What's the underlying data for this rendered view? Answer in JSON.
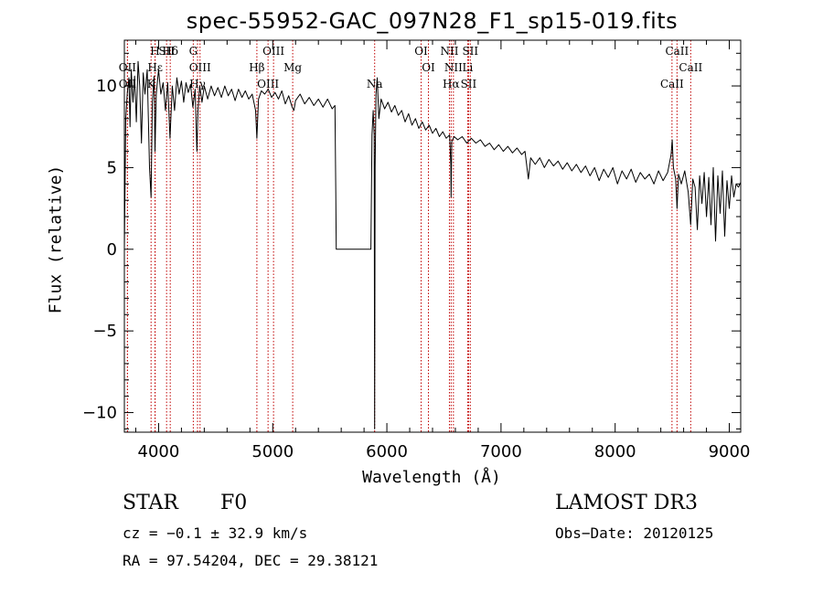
{
  "chart_data": {
    "type": "line",
    "title": "spec-55952-GAC_097N28_F1_sp15-019.fits",
    "xlabel": "Wavelength (Å)",
    "ylabel": "Flux (relative)",
    "xlim": [
      3700,
      9100
    ],
    "ylim": [
      -11.2,
      12.8
    ],
    "xticks": [
      4000,
      5000,
      6000,
      7000,
      8000,
      9000
    ],
    "xtick_labels": [
      "4000",
      "5000",
      "6000",
      "7000",
      "8000",
      "9000"
    ],
    "yticks": [
      -10,
      -5,
      0,
      5,
      10
    ],
    "ytick_labels": [
      "−10",
      "−5",
      "0",
      "5",
      "10"
    ],
    "grid": false,
    "series": [
      {
        "color": "#000000",
        "points": [
          [
            3700,
            0
          ],
          [
            3712,
            8
          ],
          [
            3725,
            9.5
          ],
          [
            3740,
            10.5
          ],
          [
            3750,
            7.5
          ],
          [
            3760,
            11
          ],
          [
            3775,
            9
          ],
          [
            3790,
            10.6
          ],
          [
            3805,
            7.8
          ],
          [
            3820,
            11.5
          ],
          [
            3835,
            10
          ],
          [
            3850,
            6.5
          ],
          [
            3865,
            10.8
          ],
          [
            3880,
            9.5
          ],
          [
            3900,
            11
          ],
          [
            3920,
            5
          ],
          [
            3934,
            3.2
          ],
          [
            3945,
            9
          ],
          [
            3960,
            10.6
          ],
          [
            3968,
            6
          ],
          [
            3980,
            9.5
          ],
          [
            4000,
            11
          ],
          [
            4020,
            9.5
          ],
          [
            4040,
            10.2
          ],
          [
            4060,
            8.5
          ],
          [
            4080,
            10.2
          ],
          [
            4100,
            6.8
          ],
          [
            4120,
            10
          ],
          [
            4140,
            8.5
          ],
          [
            4160,
            10.5
          ],
          [
            4180,
            9.5
          ],
          [
            4200,
            10.3
          ],
          [
            4220,
            9
          ],
          [
            4240,
            10.2
          ],
          [
            4260,
            9.6
          ],
          [
            4280,
            10.1
          ],
          [
            4300,
            8.7
          ],
          [
            4320,
            9.8
          ],
          [
            4335,
            6
          ],
          [
            4345,
            8.5
          ],
          [
            4360,
            10
          ],
          [
            4380,
            9
          ],
          [
            4400,
            10
          ],
          [
            4430,
            9.2
          ],
          [
            4460,
            10
          ],
          [
            4490,
            9.4
          ],
          [
            4520,
            9.9
          ],
          [
            4550,
            9.3
          ],
          [
            4580,
            10
          ],
          [
            4610,
            9.4
          ],
          [
            4640,
            9.8
          ],
          [
            4670,
            9.1
          ],
          [
            4700,
            9.8
          ],
          [
            4730,
            9.3
          ],
          [
            4760,
            9.7
          ],
          [
            4790,
            9.2
          ],
          [
            4820,
            9.5
          ],
          [
            4850,
            8.5
          ],
          [
            4861,
            6.8
          ],
          [
            4875,
            9.2
          ],
          [
            4900,
            9.7
          ],
          [
            4930,
            9.5
          ],
          [
            4960,
            9.8
          ],
          [
            4990,
            9.3
          ],
          [
            5020,
            9.6
          ],
          [
            5050,
            9.2
          ],
          [
            5080,
            9.7
          ],
          [
            5110,
            8.9
          ],
          [
            5140,
            9.4
          ],
          [
            5170,
            8.7
          ],
          [
            5185,
            8.5
          ],
          [
            5200,
            9.1
          ],
          [
            5240,
            9.5
          ],
          [
            5280,
            8.9
          ],
          [
            5320,
            9.3
          ],
          [
            5360,
            8.8
          ],
          [
            5400,
            9.2
          ],
          [
            5440,
            8.7
          ],
          [
            5480,
            9.2
          ],
          [
            5520,
            8.6
          ],
          [
            5545,
            8.8
          ],
          [
            5552,
            3.5
          ],
          [
            5556,
            0
          ],
          [
            5860,
            0
          ],
          [
            5870,
            7
          ],
          [
            5880,
            8.5
          ],
          [
            5889,
            7
          ],
          [
            5893,
            -11
          ],
          [
            5897,
            5
          ],
          [
            5905,
            9.5
          ],
          [
            5915,
            10.5
          ],
          [
            5930,
            8
          ],
          [
            5950,
            9.2
          ],
          [
            5980,
            8.6
          ],
          [
            6010,
            9
          ],
          [
            6040,
            8.4
          ],
          [
            6070,
            8.8
          ],
          [
            6100,
            8.2
          ],
          [
            6130,
            8.5
          ],
          [
            6160,
            7.8
          ],
          [
            6190,
            8.3
          ],
          [
            6220,
            7.6
          ],
          [
            6250,
            8
          ],
          [
            6280,
            7.4
          ],
          [
            6310,
            7.8
          ],
          [
            6340,
            7.3
          ],
          [
            6370,
            7.6
          ],
          [
            6400,
            7.1
          ],
          [
            6430,
            7.4
          ],
          [
            6460,
            6.9
          ],
          [
            6490,
            7.2
          ],
          [
            6520,
            6.8
          ],
          [
            6550,
            7
          ],
          [
            6560,
            5.2
          ],
          [
            6563,
            3.2
          ],
          [
            6568,
            6.6
          ],
          [
            6590,
            6.9
          ],
          [
            6620,
            6.7
          ],
          [
            6660,
            6.9
          ],
          [
            6700,
            6.5
          ],
          [
            6740,
            6.8
          ],
          [
            6780,
            6.5
          ],
          [
            6820,
            6.7
          ],
          [
            6860,
            6.3
          ],
          [
            6900,
            6.5
          ],
          [
            6940,
            6.1
          ],
          [
            6980,
            6.4
          ],
          [
            7020,
            6
          ],
          [
            7060,
            6.3
          ],
          [
            7100,
            5.9
          ],
          [
            7140,
            6.2
          ],
          [
            7180,
            5.8
          ],
          [
            7210,
            6
          ],
          [
            7240,
            4.3
          ],
          [
            7260,
            5.6
          ],
          [
            7300,
            5.2
          ],
          [
            7340,
            5.6
          ],
          [
            7380,
            5
          ],
          [
            7420,
            5.5
          ],
          [
            7460,
            5.1
          ],
          [
            7500,
            5.4
          ],
          [
            7540,
            4.9
          ],
          [
            7580,
            5.3
          ],
          [
            7620,
            4.8
          ],
          [
            7660,
            5.2
          ],
          [
            7700,
            4.7
          ],
          [
            7740,
            5.1
          ],
          [
            7780,
            4.5
          ],
          [
            7820,
            5
          ],
          [
            7860,
            4.2
          ],
          [
            7900,
            4.9
          ],
          [
            7940,
            4.4
          ],
          [
            7980,
            5
          ],
          [
            8020,
            4
          ],
          [
            8060,
            4.8
          ],
          [
            8100,
            4.3
          ],
          [
            8140,
            4.9
          ],
          [
            8180,
            4.1
          ],
          [
            8220,
            4.7
          ],
          [
            8260,
            4.3
          ],
          [
            8300,
            4.6
          ],
          [
            8340,
            4
          ],
          [
            8380,
            4.8
          ],
          [
            8420,
            4.2
          ],
          [
            8460,
            4.7
          ],
          [
            8490,
            5.8
          ],
          [
            8500,
            6.7
          ],
          [
            8510,
            5
          ],
          [
            8530,
            4.3
          ],
          [
            8542,
            2.5
          ],
          [
            8555,
            4.6
          ],
          [
            8580,
            4
          ],
          [
            8610,
            4.8
          ],
          [
            8640,
            3.5
          ],
          [
            8662,
            1.5
          ],
          [
            8680,
            4.3
          ],
          [
            8700,
            3.8
          ],
          [
            8720,
            1.2
          ],
          [
            8740,
            4.5
          ],
          [
            8760,
            2.8
          ],
          [
            8780,
            4.7
          ],
          [
            8800,
            2
          ],
          [
            8820,
            4.4
          ],
          [
            8840,
            1.5
          ],
          [
            8860,
            5
          ],
          [
            8880,
            0.5
          ],
          [
            8900,
            4.5
          ],
          [
            8920,
            2.2
          ],
          [
            8940,
            4.8
          ],
          [
            8960,
            0.8
          ],
          [
            8980,
            4.2
          ],
          [
            9000,
            2.5
          ],
          [
            9020,
            4.5
          ],
          [
            9040,
            3.2
          ],
          [
            9060,
            4
          ],
          [
            9080,
            3.8
          ],
          [
            9100,
            4.1
          ]
        ]
      }
    ],
    "line_markers": [
      {
        "label": "Hδ",
        "x": 4102
      },
      {
        "label": "Hε",
        "x": 3970
      },
      {
        "label": "K",
        "x": 3934
      },
      {
        "label": "H",
        "x": 3968
      },
      {
        "label": "OII",
        "x": 3727
      },
      {
        "label": "OII",
        "x": 3727
      },
      {
        "label": "SII",
        "x": 4070
      },
      {
        "label": "OIII",
        "x": 4363
      },
      {
        "label": "Hγ",
        "x": 4341
      },
      {
        "label": "G",
        "x": 4304
      },
      {
        "label": "Hβ",
        "x": 4861
      },
      {
        "label": "OIII",
        "x": 4959
      },
      {
        "label": "OIII",
        "x": 5007
      },
      {
        "label": "Mg",
        "x": 5175
      },
      {
        "label": "Na",
        "x": 5893
      },
      {
        "label": "OI",
        "x": 6300
      },
      {
        "label": "OI",
        "x": 6364
      },
      {
        "label": "Hα",
        "x": 6563
      },
      {
        "label": "NII",
        "x": 6548
      },
      {
        "label": "NII",
        "x": 6583
      },
      {
        "label": "SII",
        "x": 6716
      },
      {
        "label": "SII",
        "x": 6731
      },
      {
        "label": "Li",
        "x": 6708
      },
      {
        "label": "CaII",
        "x": 8498
      },
      {
        "label": "CaII",
        "x": 8542
      },
      {
        "label": "CaII",
        "x": 8662
      }
    ],
    "marker_color": "#c00000"
  },
  "info": {
    "object_class": "STAR",
    "subclass": "F0",
    "survey": "LAMOST DR3",
    "cz": "cz = −0.1 ± 32.9 km/s",
    "obs_date": "Obs−Date: 20120125",
    "coords": "RA =  97.54204, DEC =  29.38121"
  }
}
